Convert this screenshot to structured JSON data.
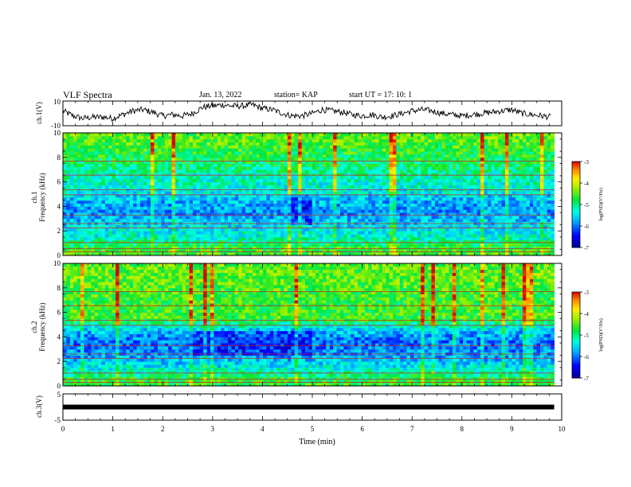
{
  "header": {
    "title": "VLF Spectra",
    "date": "Jan. 13, 2022",
    "station": "station= KAP",
    "start_ut": "start  UT =   17: 10: 1"
  },
  "chart_data": [
    {
      "type": "line",
      "panel": "ch1-waveform",
      "ylabel": "ch.1(V)",
      "ylim": [
        -10,
        10
      ],
      "yticklabels": [
        "-10",
        "10"
      ],
      "xlim": [
        0,
        10
      ],
      "series": [
        {
          "x": [
            0,
            0.2,
            0.4,
            0.6,
            0.8,
            1.0,
            1.2,
            1.4,
            1.6,
            1.8,
            2.0,
            2.2,
            2.4,
            2.6,
            2.8,
            3.0,
            3.2,
            3.4,
            3.6,
            3.8,
            4.0,
            4.2,
            4.4,
            4.6,
            4.8,
            5.0,
            5.2,
            5.4,
            5.6,
            5.8,
            6.0,
            6.2,
            6.4,
            6.6,
            6.8,
            7.0,
            7.2,
            7.4,
            7.6,
            7.8,
            8.0,
            8.2,
            8.4,
            8.6,
            8.8,
            9.0,
            9.2,
            9.4,
            9.6,
            9.8
          ],
          "values": [
            2,
            -2,
            -4,
            -3,
            -3,
            -4,
            -1,
            2,
            3,
            1,
            -2,
            -1,
            -2,
            0,
            5,
            6,
            7,
            6,
            6,
            7,
            4,
            3,
            0,
            -2,
            -2,
            0,
            3,
            2,
            1,
            -1,
            -2,
            -1,
            -3,
            -2,
            0,
            2,
            3,
            2,
            0,
            -1,
            -2,
            -1,
            0,
            1,
            2,
            3,
            0,
            -1,
            -2,
            -3
          ],
          "color": "#000000"
        }
      ]
    },
    {
      "type": "heatmap",
      "panel": "ch1-spectrogram",
      "ylabel_line1": "ch.1",
      "ylabel_line2": "Frequency (kHz)",
      "yticks": [
        0,
        2,
        4,
        6,
        8,
        10
      ],
      "ylim": [
        0,
        10
      ],
      "xlim": [
        0,
        10
      ],
      "xticks": [
        0,
        1,
        2,
        3,
        4,
        5,
        6,
        7,
        8,
        9,
        10
      ],
      "data_end_min": 9.85,
      "freq_khz": [
        0.5,
        1.5,
        2.5,
        3.5,
        4.5,
        5.5,
        6.5,
        7.5,
        8.5,
        9.5
      ],
      "mean_log_psd": [
        -4.6,
        -5.3,
        -5.5,
        -5.9,
        -5.7,
        -5.3,
        -5.2,
        -4.9,
        -4.7,
        -4.5
      ],
      "colorbar": {
        "label": "log(PSD)(V²/Hz)",
        "ticks": [
          "-3",
          "-4",
          "-5",
          "-6",
          "-7"
        ],
        "range": [
          -7,
          -3
        ]
      }
    },
    {
      "type": "heatmap",
      "panel": "ch2-spectrogram",
      "ylabel_line1": "ch.2",
      "ylabel_line2": "Frequency (kHz)",
      "yticks": [
        0,
        2,
        4,
        6,
        8,
        10
      ],
      "ylim": [
        0,
        10
      ],
      "xlim": [
        0,
        10
      ],
      "xticks": [
        0,
        1,
        2,
        3,
        4,
        5,
        6,
        7,
        8,
        9,
        10
      ],
      "data_end_min": 9.85,
      "freq_khz": [
        0.5,
        1.5,
        2.5,
        3.5,
        4.5,
        5.5,
        6.5,
        7.5,
        8.5,
        9.5
      ],
      "mean_log_psd": [
        -4.7,
        -5.4,
        -5.8,
        -6.0,
        -5.7,
        -4.6,
        -4.7,
        -4.6,
        -4.5,
        -4.5
      ],
      "colorbar": {
        "label": "log(PSD)(V²/Hz)",
        "ticks": [
          "-3",
          "-4",
          "-5",
          "-6",
          "-7"
        ],
        "range": [
          -7,
          -3
        ]
      }
    },
    {
      "type": "line",
      "panel": "ch3-waveform",
      "ylabel": "ch.3(V)",
      "ylim": [
        -5,
        5
      ],
      "yticklabels": [
        "-5",
        "5"
      ],
      "xlim": [
        0,
        10
      ],
      "xticks": [
        0,
        1,
        2,
        3,
        4,
        5,
        6,
        7,
        8,
        9,
        10
      ],
      "xticklabels": [
        "0",
        "1",
        "2",
        "3",
        "4",
        "5",
        "6",
        "7",
        "8",
        "9",
        "10"
      ],
      "xlabel": "Time (min)",
      "series": [
        {
          "x": [
            0,
            9.85
          ],
          "values": [
            0,
            0
          ],
          "color": "#000000"
        }
      ]
    }
  ]
}
